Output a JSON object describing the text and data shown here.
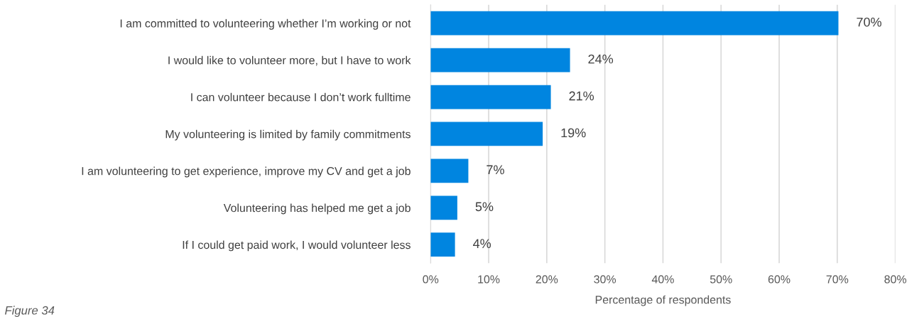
{
  "chart_data": {
    "type": "bar",
    "orientation": "horizontal",
    "categories": [
      "I am committed to volunteering whether I’m working or not",
      "I would like to volunteer more, but I have to work",
      "I can volunteer because I don’t work fulltime",
      "My volunteering is limited by family commitments",
      "I am volunteering to get experience, improve my CV and get a job",
      "Volunteering has helped me get a job",
      "If I could get paid work, I would volunteer less"
    ],
    "values": [
      70.2,
      24.0,
      20.7,
      19.3,
      6.5,
      4.6,
      4.2
    ],
    "value_labels": [
      "70%",
      "24%",
      "21%",
      "19%",
      "7%",
      "5%",
      "4%"
    ],
    "color": "#0085e0",
    "xlabel": "Percentage of respondents",
    "xlim": [
      0,
      80
    ],
    "xticks": [
      {
        "value": 0,
        "label": "0%"
      },
      {
        "value": 10,
        "label": "10%"
      },
      {
        "value": 20,
        "label": "20%"
      },
      {
        "value": 30,
        "label": "30%"
      },
      {
        "value": 40,
        "label": "40%"
      },
      {
        "value": 50,
        "label": "50%"
      },
      {
        "value": 60,
        "label": "60%"
      },
      {
        "value": 70,
        "label": "70%"
      },
      {
        "value": 80,
        "label": "80%"
      }
    ],
    "grid": "x",
    "annotations": [
      "Figure 34"
    ]
  }
}
